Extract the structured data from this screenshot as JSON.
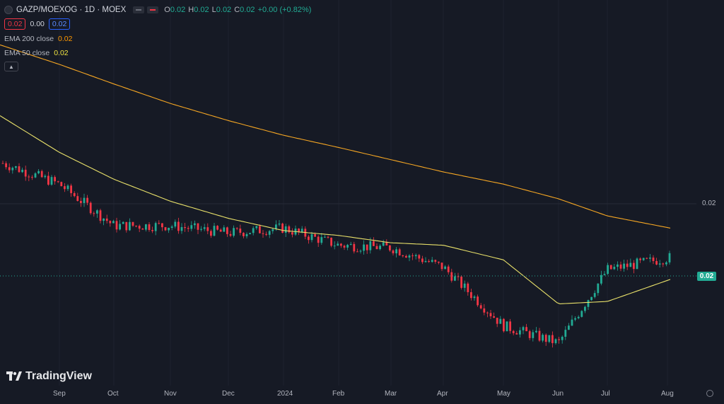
{
  "header": {
    "symbol": "GAZP/MOEXOG · 1D · MOEX",
    "ohlc": [
      {
        "k": "O",
        "v": "0.02"
      },
      {
        "k": "H",
        "v": "0.02"
      },
      {
        "k": "L",
        "v": "0.02"
      },
      {
        "k": "C",
        "v": "0.02"
      }
    ],
    "change": "+0.00 (+0.82%)",
    "bid": "0.02",
    "spread": "0.00",
    "ask": "0.02"
  },
  "indicators": [
    {
      "name": "EMA 200 close",
      "value": "0.02"
    },
    {
      "name": "EMA 50 close",
      "value": "0.02"
    }
  ],
  "brand": "TradingView",
  "colors": {
    "background": "#161a25",
    "up": "#22ab94",
    "down": "#f23645",
    "ema200": "#ff9800",
    "ema50": "#f0e442"
  },
  "chart_data": {
    "type": "candlestick",
    "x_tick_labels": [
      "Sep",
      "Oct",
      "Nov",
      "Dec",
      "2024",
      "Feb",
      "Mar",
      "Apr",
      "May",
      "Jun",
      "Jul",
      "Aug"
    ],
    "y_tick_labels": [
      "0.02"
    ],
    "last_price_label": "0.02",
    "series": [
      {
        "name": "EMA 200 close",
        "values": [
          0.0287,
          0.0279,
          0.0271,
          0.0263,
          0.0256,
          0.025,
          0.0245,
          0.024,
          0.0235,
          0.023,
          0.0224,
          0.0217,
          0.0212
        ]
      },
      {
        "name": "EMA 50 close",
        "values": [
          0.0258,
          0.0243,
          0.0232,
          0.0223,
          0.0216,
          0.0211,
          0.0209,
          0.0206,
          0.0205,
          0.0199,
          0.0181,
          0.0182,
          0.0191
        ]
      },
      {
        "name": "Price (approx close)",
        "values": [
          0.0239,
          0.023,
          0.0213,
          0.0213,
          0.021,
          0.0212,
          0.0205,
          0.0204,
          0.0196,
          0.0172,
          0.0165,
          0.0195,
          0.02
        ]
      }
    ]
  }
}
